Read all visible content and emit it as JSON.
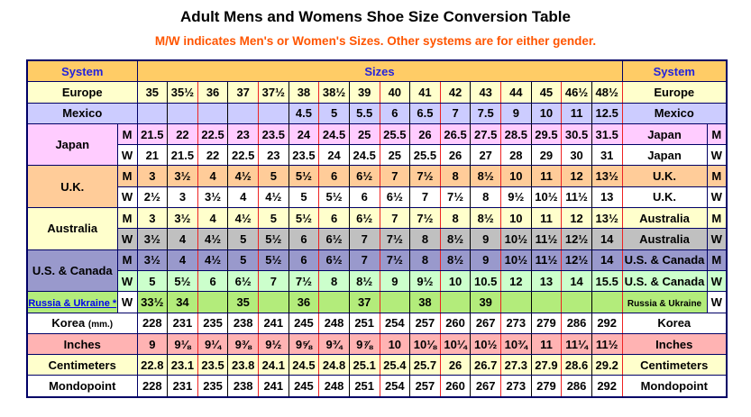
{
  "page": {
    "title": "Adult Mens and Womens Shoe Size Conversion Table",
    "subtitle": "M/W indicates Men's or Women's Sizes. Other systems are for either gender."
  },
  "colors": {
    "header_bg": "#FFCC66",
    "header_text": "#2222DD",
    "subtitle_text": "#FF5500",
    "link_text": "#0000EE",
    "grid_red": "#EE2222",
    "grid_dark": "#000066",
    "grid_black": "#000000",
    "yellow": "#FFFFCC",
    "lavender": "#CCCCFF",
    "pink": "#FFCCFF",
    "peach": "#FFCC99",
    "white": "#FFFFFF",
    "gray": "#C0C0C0",
    "purple": "#9999CC",
    "green": "#CCFFCC",
    "lime": "#B3EC7B",
    "salmon": "#FFB3B3"
  },
  "table": {
    "header": {
      "left": "System",
      "center": "Sizes",
      "right": "System"
    },
    "rows": [
      {
        "name": "europe",
        "bg": "yellow",
        "left": {
          "label": "Europe",
          "span_mw": true,
          "bg": "yellow"
        },
        "right": {
          "label": "Europe",
          "span_mw": true,
          "bg": "yellow"
        },
        "values": [
          "35",
          "35½",
          "36",
          "37",
          "37½",
          "38",
          "38½",
          "39",
          "40",
          "41",
          "42",
          "43",
          "44",
          "45",
          "46½",
          "48½"
        ]
      },
      {
        "name": "mexico",
        "bg": "lavender",
        "left": {
          "label": "Mexico",
          "span_mw": true,
          "bg": "lavender"
        },
        "right": {
          "label": "Mexico",
          "span_mw": true,
          "bg": "lavender"
        },
        "values": [
          "",
          "",
          "",
          "",
          "",
          "4.5",
          "5",
          "5.5",
          "6",
          "6.5",
          "7",
          "7.5",
          "9",
          "10",
          "11",
          "12.5"
        ]
      },
      {
        "name": "japan-m",
        "bg": "pink",
        "left": {
          "label": "Japan",
          "rowspan": 2,
          "bg": "pink"
        },
        "mw": {
          "label": "M",
          "bg": "pink"
        },
        "right": {
          "label": "Japan",
          "bg": "pink"
        },
        "right_mw": {
          "label": "M",
          "bg": "pink"
        },
        "values": [
          "21.5",
          "22",
          "22.5",
          "23",
          "23.5",
          "24",
          "24.5",
          "25",
          "25.5",
          "26",
          "26.5",
          "27.5",
          "28.5",
          "29.5",
          "30.5",
          "31.5"
        ]
      },
      {
        "name": "japan-w",
        "bg": "white",
        "left": null,
        "mw": {
          "label": "W",
          "bg": "white"
        },
        "right": {
          "label": "Japan",
          "bg": "white"
        },
        "right_mw": {
          "label": "W",
          "bg": "white"
        },
        "values": [
          "21",
          "21.5",
          "22",
          "22.5",
          "23",
          "23.5",
          "24",
          "24.5",
          "25",
          "25.5",
          "26",
          "27",
          "28",
          "29",
          "30",
          "31"
        ]
      },
      {
        "name": "uk-m",
        "bg": "peach",
        "left": {
          "label": "U.K.",
          "rowspan": 2,
          "bg": "peach"
        },
        "mw": {
          "label": "M",
          "bg": "peach"
        },
        "right": {
          "label": "U.K.",
          "bg": "peach"
        },
        "right_mw": {
          "label": "M",
          "bg": "peach"
        },
        "values": [
          "3",
          "3½",
          "4",
          "4½",
          "5",
          "5½",
          "6",
          "6½",
          "7",
          "7½",
          "8",
          "8½",
          "10",
          "11",
          "12",
          "13½"
        ]
      },
      {
        "name": "uk-w",
        "bg": "white",
        "left": null,
        "mw": {
          "label": "W",
          "bg": "white"
        },
        "right": {
          "label": "U.K.",
          "bg": "white"
        },
        "right_mw": {
          "label": "W",
          "bg": "white"
        },
        "values": [
          "2½",
          "3",
          "3½",
          "4",
          "4½",
          "5",
          "5½",
          "6",
          "6½",
          "7",
          "7½",
          "8",
          "9½",
          "10½",
          "11½",
          "13"
        ]
      },
      {
        "name": "australia-m",
        "bg": "yellow",
        "left": {
          "label": "Australia",
          "rowspan": 2,
          "bg": "yellow"
        },
        "mw": {
          "label": "M",
          "bg": "yellow"
        },
        "right": {
          "label": "Australia",
          "bg": "yellow"
        },
        "right_mw": {
          "label": "M",
          "bg": "yellow"
        },
        "values": [
          "3",
          "3½",
          "4",
          "4½",
          "5",
          "5½",
          "6",
          "6½",
          "7",
          "7½",
          "8",
          "8½",
          "10",
          "11",
          "12",
          "13½"
        ]
      },
      {
        "name": "australia-w",
        "bg": "gray",
        "left": null,
        "mw": {
          "label": "W",
          "bg": "gray"
        },
        "right": {
          "label": "Australia",
          "bg": "gray"
        },
        "right_mw": {
          "label": "W",
          "bg": "gray"
        },
        "values": [
          "3½",
          "4",
          "4½",
          "5",
          "5½",
          "6",
          "6½",
          "7",
          "7½",
          "8",
          "8½",
          "9",
          "10½",
          "11½",
          "12½",
          "14"
        ]
      },
      {
        "name": "us-canada-m",
        "bg": "purple",
        "left": {
          "label": "U.S. & Canada",
          "rowspan": 2,
          "bg": "purple"
        },
        "mw": {
          "label": "M",
          "bg": "purple"
        },
        "right": {
          "label": "U.S. & Canada",
          "bg": "purple"
        },
        "right_mw": {
          "label": "M",
          "bg": "purple"
        },
        "values": [
          "3½",
          "4",
          "4½",
          "5",
          "5½",
          "6",
          "6½",
          "7",
          "7½",
          "8",
          "8½",
          "9",
          "10½",
          "11½",
          "12½",
          "14"
        ]
      },
      {
        "name": "us-canada-w",
        "bg": "green",
        "left": null,
        "mw": {
          "label": "W",
          "bg": "green"
        },
        "right": {
          "label": "U.S. & Canada",
          "bg": "green"
        },
        "right_mw": {
          "label": "W",
          "bg": "green"
        },
        "values": [
          "5",
          "5½",
          "6",
          "6½",
          "7",
          "7½",
          "8",
          "8½",
          "9",
          "9½",
          "10",
          "10.5",
          "12",
          "13",
          "14",
          "15.5"
        ]
      },
      {
        "name": "russia-ukraine",
        "bg": "lime",
        "left": {
          "label": "Russia & Ukraine *",
          "bg": "lime",
          "link": true,
          "small": true
        },
        "mw": {
          "label": "W",
          "bg": "white"
        },
        "right": {
          "label": "Russia & Ukraine",
          "bg": "lime",
          "small": true
        },
        "right_mw": {
          "label": "W",
          "bg": "white"
        },
        "values": [
          "33½",
          "34",
          "",
          "35",
          "",
          "36",
          "",
          "37",
          "",
          "38",
          "",
          "39",
          "",
          "",
          "",
          ""
        ]
      },
      {
        "name": "korea",
        "bg": "white",
        "left": {
          "label": "Korea",
          "suffix": "(mm.)",
          "span_mw": true,
          "bg": "white"
        },
        "right": {
          "label": "Korea",
          "span_mw": true,
          "bg": "white"
        },
        "values": [
          "228",
          "231",
          "235",
          "238",
          "241",
          "245",
          "248",
          "251",
          "254",
          "257",
          "260",
          "267",
          "273",
          "279",
          "286",
          "292"
        ]
      },
      {
        "name": "inches",
        "bg": "salmon",
        "left": {
          "label": "Inches",
          "span_mw": true,
          "bg": "salmon"
        },
        "right": {
          "label": "Inches",
          "span_mw": true,
          "bg": "salmon"
        },
        "values": [
          "9",
          "9⅛",
          "9¼",
          "9⅜",
          "9½",
          "9⅝",
          "9¾",
          "9⅞",
          "10",
          "10⅛",
          "10¼",
          "10½",
          "10¾",
          "11",
          "11¼",
          "11½"
        ]
      },
      {
        "name": "centimeters",
        "bg": "yellow",
        "left": {
          "label": "Centimeters",
          "span_mw": true,
          "bg": "yellow"
        },
        "right": {
          "label": "Centimeters",
          "span_mw": true,
          "bg": "yellow"
        },
        "values": [
          "22.8",
          "23.1",
          "23.5",
          "23.8",
          "24.1",
          "24.5",
          "24.8",
          "25.1",
          "25.4",
          "25.7",
          "26",
          "26.7",
          "27.3",
          "27.9",
          "28.6",
          "29.2"
        ]
      },
      {
        "name": "mondopoint",
        "bg": "white",
        "left": {
          "label": "Mondopoint",
          "span_mw": true,
          "bg": "white"
        },
        "right": {
          "label": "Mondopoint",
          "span_mw": true,
          "bg": "white"
        },
        "values": [
          "228",
          "231",
          "235",
          "238",
          "241",
          "245",
          "248",
          "251",
          "254",
          "257",
          "260",
          "267",
          "273",
          "279",
          "286",
          "292"
        ]
      }
    ]
  }
}
